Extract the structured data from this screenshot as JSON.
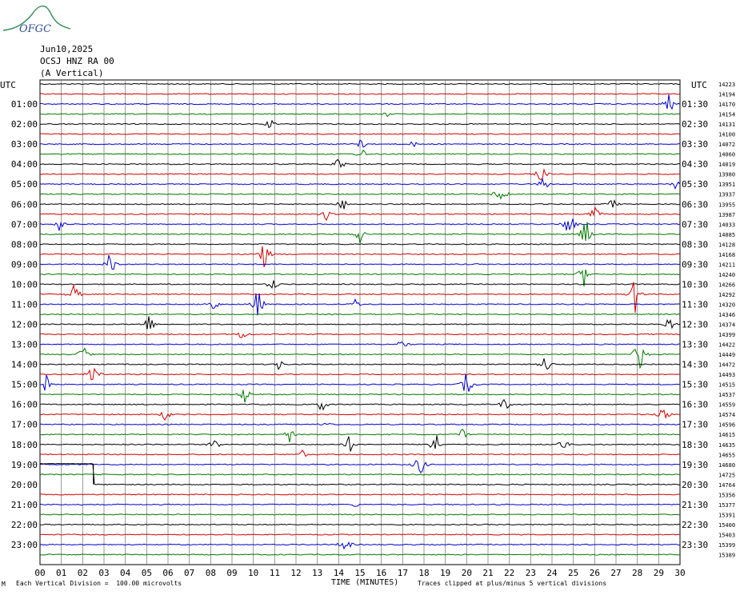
{
  "logo": {
    "text": "OFGC",
    "color": "#2e8b57"
  },
  "header": {
    "date": "Jun10,2025",
    "station": "OCSJ HNZ RA 00",
    "component": "(A Vertical)"
  },
  "footer": {
    "left": "Each Vertical Division =  100.00 microvolts",
    "xlabel": "TIME (MINUTES)",
    "right": "Traces clipped at plus/minus 5 vertical divisions",
    "corner_mark": "M"
  },
  "colors": {
    "trace_cycle": [
      "#000000",
      "#d40000",
      "#0000d0",
      "#007a00"
    ],
    "grid": "#7f7f7f"
  },
  "chart_data": {
    "type": "line",
    "title": "",
    "xlabel": "TIME (MINUTES)",
    "ylabel": "",
    "xlim": [
      0,
      30
    ],
    "x_ticks": [
      "00",
      "01",
      "02",
      "03",
      "04",
      "05",
      "06",
      "07",
      "08",
      "09",
      "10",
      "11",
      "12",
      "13",
      "14",
      "15",
      "16",
      "17",
      "18",
      "19",
      "20",
      "21",
      "22",
      "23",
      "24",
      "25",
      "26",
      "27",
      "28",
      "29",
      "30"
    ],
    "grid": true,
    "left_axis_label": "UTC",
    "right_axis_label": "UTC",
    "left_hour_labels": [
      "01:00",
      "02:00",
      "03:00",
      "04:00",
      "05:00",
      "06:00",
      "07:00",
      "08:00",
      "09:00",
      "10:00",
      "11:00",
      "12:00",
      "13:00",
      "14:00",
      "15:00",
      "16:00",
      "17:00",
      "18:00",
      "19:00",
      "20:00",
      "21:00",
      "22:00",
      "23:00"
    ],
    "right_hour_labels": [
      "01:30",
      "02:30",
      "03:30",
      "04:30",
      "05:30",
      "06:30",
      "07:30",
      "08:30",
      "09:30",
      "10:30",
      "11:30",
      "12:30",
      "13:30",
      "14:30",
      "15:30",
      "16:30",
      "17:30",
      "18:30",
      "19:30",
      "20:30",
      "21:30",
      "22:30",
      "23:30"
    ],
    "trace_count": 48,
    "right_values": [
      "14223",
      "14194",
      "14170",
      "14154",
      "14131",
      "14100",
      "14072",
      "14060",
      "14019",
      "13980",
      "13951",
      "13937",
      "13955",
      "13987",
      "14033",
      "14085",
      "14128",
      "14168",
      "14211",
      "14240",
      "14266",
      "14292",
      "14320",
      "14346",
      "14374",
      "14399",
      "14422",
      "14449",
      "14472",
      "14493",
      "14515",
      "14537",
      "14559",
      "14574",
      "14596",
      "14615",
      "14635",
      "14655",
      "14680",
      "14725",
      "14764",
      "15356",
      "15377",
      "15391",
      "15400",
      "15403",
      "15399",
      "15389"
    ],
    "events": [
      {
        "trace": 2,
        "minute": 29.5,
        "amp": 14
      },
      {
        "trace": 3,
        "minute": 16.3,
        "amp": 4
      },
      {
        "trace": 4,
        "minute": 10.8,
        "amp": 7
      },
      {
        "trace": 6,
        "minute": 15.0,
        "amp": 12
      },
      {
        "trace": 6,
        "minute": 17.5,
        "amp": 5
      },
      {
        "trace": 7,
        "minute": 15.1,
        "amp": 8
      },
      {
        "trace": 8,
        "minute": 14.0,
        "amp": 12
      },
      {
        "trace": 9,
        "minute": 23.5,
        "amp": 12
      },
      {
        "trace": 10,
        "minute": 23.6,
        "amp": 11
      },
      {
        "trace": 10,
        "minute": 29.8,
        "amp": 10
      },
      {
        "trace": 11,
        "minute": 21.6,
        "amp": 18
      },
      {
        "trace": 12,
        "minute": 14.2,
        "amp": 9
      },
      {
        "trace": 12,
        "minute": 26.8,
        "amp": 10
      },
      {
        "trace": 13,
        "minute": 26.0,
        "amp": 12
      },
      {
        "trace": 13,
        "minute": 13.4,
        "amp": 9
      },
      {
        "trace": 14,
        "minute": 24.8,
        "amp": 20
      },
      {
        "trace": 14,
        "minute": 0.9,
        "amp": 9
      },
      {
        "trace": 15,
        "minute": 25.6,
        "amp": 24
      },
      {
        "trace": 15,
        "minute": 15.0,
        "amp": 12
      },
      {
        "trace": 17,
        "minute": 10.5,
        "amp": 20
      },
      {
        "trace": 18,
        "minute": 3.3,
        "amp": 18
      },
      {
        "trace": 19,
        "minute": 25.5,
        "amp": 16
      },
      {
        "trace": 20,
        "minute": 10.9,
        "amp": 10
      },
      {
        "trace": 21,
        "minute": 1.6,
        "amp": 14
      },
      {
        "trace": 21,
        "minute": 27.9,
        "amp": 24
      },
      {
        "trace": 22,
        "minute": 10.2,
        "amp": 22
      },
      {
        "trace": 22,
        "minute": 8.1,
        "amp": 12
      },
      {
        "trace": 22,
        "minute": 14.8,
        "amp": 8
      },
      {
        "trace": 24,
        "minute": 5.1,
        "amp": 14
      },
      {
        "trace": 24,
        "minute": 29.5,
        "amp": 12
      },
      {
        "trace": 25,
        "minute": 9.5,
        "amp": 10
      },
      {
        "trace": 26,
        "minute": 17.0,
        "amp": 9
      },
      {
        "trace": 27,
        "minute": 2.0,
        "amp": 14
      },
      {
        "trace": 27,
        "minute": 28.1,
        "amp": 24
      },
      {
        "trace": 28,
        "minute": 23.7,
        "amp": 14
      },
      {
        "trace": 28,
        "minute": 11.2,
        "amp": 8
      },
      {
        "trace": 29,
        "minute": 2.5,
        "amp": 24
      },
      {
        "trace": 30,
        "minute": 0.3,
        "amp": 14
      },
      {
        "trace": 30,
        "minute": 20.0,
        "amp": 18
      },
      {
        "trace": 31,
        "minute": 9.6,
        "amp": 12
      },
      {
        "trace": 32,
        "minute": 13.2,
        "amp": 12
      },
      {
        "trace": 32,
        "minute": 21.8,
        "amp": 10
      },
      {
        "trace": 33,
        "minute": 29.2,
        "amp": 14
      },
      {
        "trace": 33,
        "minute": 5.9,
        "amp": 10
      },
      {
        "trace": 34,
        "minute": 13.4,
        "amp": 8
      },
      {
        "trace": 35,
        "minute": 11.7,
        "amp": 10
      },
      {
        "trace": 35,
        "minute": 19.8,
        "amp": 8
      },
      {
        "trace": 36,
        "minute": 18.5,
        "amp": 22
      },
      {
        "trace": 36,
        "minute": 8.2,
        "amp": 10
      },
      {
        "trace": 36,
        "minute": 24.5,
        "amp": 10
      },
      {
        "trace": 36,
        "minute": 14.5,
        "amp": 12
      },
      {
        "trace": 38,
        "minute": 17.8,
        "amp": 18
      },
      {
        "trace": 37,
        "minute": 12.3,
        "amp": 6
      },
      {
        "trace": 42,
        "minute": 14.8,
        "amp": 4
      },
      {
        "trace": 46,
        "minute": 14.3,
        "amp": 14
      }
    ],
    "step_event": {
      "trace": 40,
      "minute_start": 0,
      "minute_end": 2.5
    }
  }
}
